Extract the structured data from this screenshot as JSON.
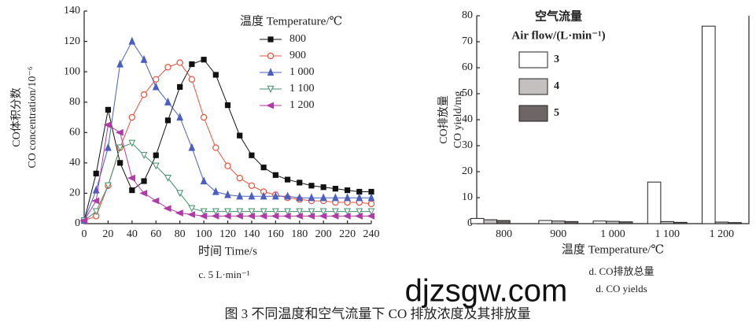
{
  "chart_data": [
    {
      "type": "line",
      "title_lines": [
        "温度 Temperature/℃"
      ],
      "ylabel": [
        "CO体积分数",
        "CO concentration/10⁻⁶"
      ],
      "xlabel": "时间 Time/s",
      "caption": [
        "c. 5 L·min⁻¹"
      ],
      "x": [
        0,
        10,
        20,
        30,
        40,
        50,
        60,
        70,
        80,
        90,
        100,
        110,
        120,
        130,
        140,
        150,
        160,
        170,
        180,
        190,
        200,
        210,
        220,
        230,
        240
      ],
      "xlim": [
        0,
        240
      ],
      "xticks": [
        0,
        20,
        40,
        60,
        80,
        100,
        120,
        140,
        160,
        180,
        200,
        220,
        240
      ],
      "ylim": [
        0,
        140
      ],
      "yticks": [
        0,
        20,
        40,
        60,
        80,
        100,
        120,
        140
      ],
      "grid": false,
      "series": [
        {
          "name": "800",
          "color": "#111111",
          "marker": "square",
          "values": [
            2,
            33,
            75,
            40,
            22,
            28,
            45,
            68,
            90,
            105,
            108,
            98,
            78,
            58,
            45,
            37,
            32,
            29,
            27,
            25,
            24,
            23,
            22,
            21,
            21
          ]
        },
        {
          "name": "900",
          "color": "#e8503a",
          "marker": "circle",
          "values": [
            2,
            5,
            25,
            50,
            70,
            85,
            95,
            103,
            106,
            95,
            70,
            50,
            38,
            30,
            25,
            21,
            19,
            17,
            16,
            15,
            15,
            14,
            14,
            14,
            13
          ]
        },
        {
          "name": "1 000",
          "color": "#4a5fc1",
          "marker": "triangle",
          "values": [
            2,
            22,
            50,
            105,
            120,
            108,
            90,
            80,
            70,
            50,
            28,
            21,
            19,
            18,
            18,
            18,
            18,
            18,
            17,
            17,
            17,
            17,
            17,
            17,
            17
          ]
        },
        {
          "name": "1 100",
          "color": "#3f8f6a",
          "marker": "tri-down",
          "values": [
            2,
            8,
            25,
            50,
            53,
            45,
            38,
            30,
            20,
            10,
            8,
            8,
            8,
            8,
            8,
            8,
            8,
            8,
            8,
            8,
            8,
            8,
            8,
            8,
            8
          ]
        },
        {
          "name": "1 200",
          "color": "#b03aa8",
          "marker": "left",
          "values": [
            2,
            15,
            65,
            60,
            30,
            20,
            15,
            10,
            7,
            6,
            5,
            5,
            5,
            5,
            5,
            5,
            5,
            5,
            5,
            5,
            5,
            5,
            5,
            5,
            5
          ]
        }
      ]
    },
    {
      "type": "bar",
      "title_lines": [
        "空气流量",
        "Air flow/(L·min⁻¹)"
      ],
      "ylabel": [
        "CO排放量",
        "CO yield/mg"
      ],
      "xlabel": "温度 Temperature/℃",
      "caption": [
        "d. CO排放总量",
        "d. CO yields"
      ],
      "categories": [
        "800",
        "900",
        "1 000",
        "1 100",
        "1 200"
      ],
      "ylim": [
        0,
        80
      ],
      "yticks": [
        0,
        10,
        20,
        30,
        40,
        50,
        60,
        70,
        80
      ],
      "grid": false,
      "series": [
        {
          "name": "3",
          "color": "#ffffff",
          "values": [
            2,
            1.2,
            1.0,
            16,
            76
          ]
        },
        {
          "name": "4",
          "color": "#c4c0c0",
          "values": [
            1.5,
            1.0,
            0.9,
            0.8,
            0.6
          ]
        },
        {
          "name": "5",
          "color": "#6e6666",
          "values": [
            1.2,
            0.8,
            0.7,
            0.5,
            0.4
          ]
        }
      ]
    }
  ],
  "figure_caption": "图 3   不同温度和空气流量下 CO 排放浓度及其排放量",
  "watermark": "djzsgw.com"
}
